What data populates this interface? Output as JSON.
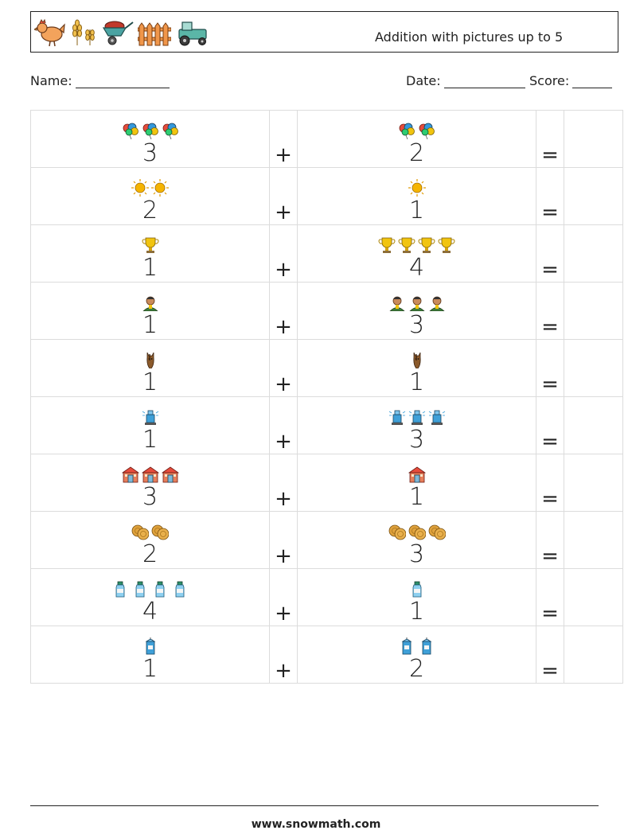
{
  "header": {
    "title": "Addition with pictures up to 5",
    "icons": [
      "hen-icon",
      "wheat-icon",
      "wheelbarrow-icon",
      "fence-icon",
      "tractor-icon"
    ]
  },
  "fields": {
    "name_label": "Name:",
    "date_label": "Date:",
    "score_label": "Score:"
  },
  "operators": {
    "plus": "+",
    "equals": "="
  },
  "problems": [
    {
      "a": "3",
      "b": "2",
      "icon": "balloons-icon"
    },
    {
      "a": "2",
      "b": "1",
      "icon": "sun-icon"
    },
    {
      "a": "1",
      "b": "4",
      "icon": "trophy-icon"
    },
    {
      "a": "1",
      "b": "3",
      "icon": "farmer-icon"
    },
    {
      "a": "1",
      "b": "1",
      "icon": "horse-icon"
    },
    {
      "a": "1",
      "b": "3",
      "icon": "sprinkler-icon"
    },
    {
      "a": "3",
      "b": "1",
      "icon": "barn-icon"
    },
    {
      "a": "2",
      "b": "3",
      "icon": "hay-bales-icon"
    },
    {
      "a": "4",
      "b": "1",
      "icon": "milk-bottle-icon"
    },
    {
      "a": "1",
      "b": "2",
      "icon": "drink-carton-icon"
    }
  ],
  "footer": {
    "url": "www.snowmath.com"
  }
}
